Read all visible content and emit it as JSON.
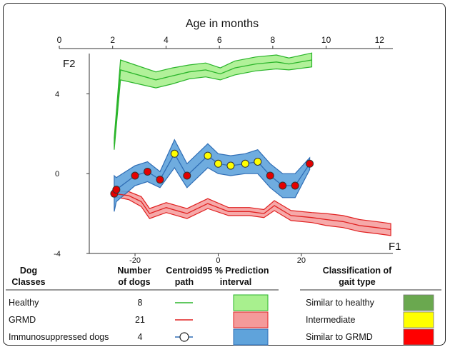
{
  "chart_data": {
    "type": "line",
    "title": "Age in months",
    "top_axis": {
      "ticks": [
        "0",
        "2",
        "4",
        "6",
        "8",
        "10",
        "12"
      ],
      "range": [
        0,
        12.5
      ]
    },
    "f1_axis": {
      "label": "F1",
      "ticks": [
        "-20",
        "0",
        "20"
      ],
      "range": [
        -31,
        42
      ]
    },
    "f2_axis": {
      "label": "F2",
      "ticks": [
        "4",
        "0",
        "-4"
      ],
      "range": [
        -4,
        6.2
      ]
    },
    "series": [
      {
        "name": "Healthy",
        "color": "#2bb52b",
        "fill": "#a8f08e",
        "x": [
          -25,
          -23.5,
          -15,
          -11,
          -7,
          -3,
          0.5,
          4,
          9,
          14,
          17,
          22.5
        ],
        "y": [
          1.5,
          5.2,
          4.7,
          4.9,
          5.1,
          5.2,
          5.0,
          5.3,
          5.5,
          5.6,
          5.5,
          5.7
        ],
        "band_half_width": [
          0.3,
          0.5,
          0.4,
          0.4,
          0.35,
          0.35,
          0.3,
          0.35,
          0.35,
          0.35,
          0.3,
          0.35
        ]
      },
      {
        "name": "GRMD",
        "color": "#e02020",
        "fill": "#f49a9a",
        "x": [
          -25,
          -21.5,
          -18.5,
          -16.5,
          -12.5,
          -7.5,
          -2.5,
          2.5,
          7.5,
          11,
          13.5,
          17.5,
          22.5,
          26,
          30,
          34,
          38,
          41.5
        ],
        "y": [
          -1.0,
          -1.1,
          -1.4,
          -2.0,
          -1.7,
          -2.0,
          -1.5,
          -1.9,
          -1.9,
          -2.0,
          -1.6,
          -2.1,
          -2.2,
          -2.3,
          -2.4,
          -2.6,
          -2.7,
          -2.8
        ],
        "band_half_width": [
          0.15,
          0.2,
          0.25,
          0.25,
          0.25,
          0.25,
          0.25,
          0.2,
          0.2,
          0.2,
          0.25,
          0.25,
          0.25,
          0.3,
          0.3,
          0.3,
          0.3,
          0.3
        ]
      },
      {
        "name": "Immunosuppressed dogs",
        "color": "#2f6db5",
        "fill": "#5fa3db",
        "x": [
          -25,
          -24.5,
          -20,
          -17,
          -14,
          -10.5,
          -7.5,
          -2.5,
          0,
          3,
          6.5,
          9.5,
          12.5,
          15.5,
          18.5,
          22
        ],
        "y": [
          -1.0,
          -0.8,
          -0.1,
          0.1,
          -0.3,
          1.0,
          -0.1,
          0.9,
          0.5,
          0.4,
          0.5,
          0.6,
          -0.1,
          -0.6,
          -0.6,
          0.5
        ],
        "band_half_width": [
          0.9,
          0.6,
          0.5,
          0.5,
          0.4,
          0.7,
          0.6,
          0.6,
          0.5,
          0.5,
          0.5,
          0.6,
          0.6,
          0.6,
          0.6,
          0.3
        ],
        "marker_classes": [
          "red",
          "red",
          "red",
          "red",
          "red",
          "yellow",
          "red",
          "yellow",
          "yellow",
          "yellow",
          "yellow",
          "yellow",
          "red",
          "red",
          "red",
          "red"
        ]
      }
    ],
    "legend_table": {
      "headers": [
        "Dog\nClasses",
        "Number\nof dogs",
        "Centroid\npath",
        "95 % Prediction\ninterval",
        "Classification of\ngait type"
      ],
      "rows": [
        {
          "name": "Healthy",
          "count": "8"
        },
        {
          "name": "GRMD",
          "count": "21"
        },
        {
          "name": "Immunosuppressed dogs",
          "count": "4"
        }
      ],
      "gait": [
        {
          "label": "Similar to healthy",
          "color": "#6aa84f"
        },
        {
          "label": "Intermediate",
          "color": "#ffff00"
        },
        {
          "label": "Similar to GRMD",
          "color": "#ff0000"
        }
      ]
    },
    "colors": {
      "marker_red": "#e30000",
      "marker_yellow": "#ffff00",
      "grid": "none"
    }
  }
}
